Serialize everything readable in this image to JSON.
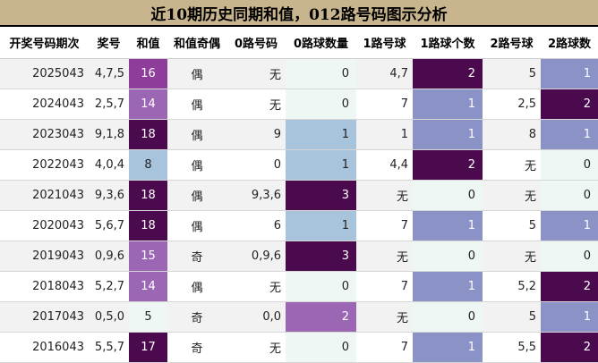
{
  "title": "近10期历史同期和值，012路号码图示分析",
  "headers": [
    "开奖号码期次",
    "奖号",
    "和值",
    "和值奇偶",
    "0路号码",
    "0路球数量",
    "1路号球",
    "1路球个数",
    "2路号球",
    "2路球数"
  ],
  "colors": {
    "title_bg": "#c8b58e",
    "deep_purple": "#4b0a4e",
    "purple": "#8e3d9a",
    "medium_purple": "#9b66b3",
    "periwinkle": "#8b93c6",
    "light_blue": "#a8c4dd",
    "pale_mint": "#eef7f4",
    "stripe_gray": "#f2f2f2"
  },
  "rows": [
    {
      "issue": "2025043",
      "numbers": "4,7,5",
      "sum": "16",
      "parity": "偶",
      "r0": "无",
      "r0n": "0",
      "r1": "4,7",
      "r1n": "2",
      "r2": "5",
      "r2n": "1"
    },
    {
      "issue": "2024043",
      "numbers": "2,5,7",
      "sum": "14",
      "parity": "偶",
      "r0": "无",
      "r0n": "0",
      "r1": "7",
      "r1n": "1",
      "r2": "2,5",
      "r2n": "2"
    },
    {
      "issue": "2023043",
      "numbers": "9,1,8",
      "sum": "18",
      "parity": "偶",
      "r0": "9",
      "r0n": "1",
      "r1": "1",
      "r1n": "1",
      "r2": "8",
      "r2n": "1"
    },
    {
      "issue": "2022043",
      "numbers": "4,0,4",
      "sum": "8",
      "parity": "偶",
      "r0": "0",
      "r0n": "1",
      "r1": "4,4",
      "r1n": "2",
      "r2": "无",
      "r2n": "0"
    },
    {
      "issue": "2021043",
      "numbers": "9,3,6",
      "sum": "18",
      "parity": "偶",
      "r0": "9,3,6",
      "r0n": "3",
      "r1": "无",
      "r1n": "0",
      "r2": "无",
      "r2n": "0"
    },
    {
      "issue": "2020043",
      "numbers": "5,6,7",
      "sum": "18",
      "parity": "偶",
      "r0": "6",
      "r0n": "1",
      "r1": "7",
      "r1n": "1",
      "r2": "5",
      "r2n": "1"
    },
    {
      "issue": "2019043",
      "numbers": "0,9,6",
      "sum": "15",
      "parity": "奇",
      "r0": "0,9,6",
      "r0n": "3",
      "r1": "无",
      "r1n": "0",
      "r2": "无",
      "r2n": "0"
    },
    {
      "issue": "2018043",
      "numbers": "5,2,7",
      "sum": "14",
      "parity": "偶",
      "r0": "无",
      "r0n": "0",
      "r1": "7",
      "r1n": "1",
      "r2": "5,2",
      "r2n": "2"
    },
    {
      "issue": "2017043",
      "numbers": "0,5,0",
      "sum": "5",
      "parity": "奇",
      "r0": "0,0",
      "r0n": "2",
      "r1": "无",
      "r1n": "0",
      "r2": "5",
      "r2n": "1"
    },
    {
      "issue": "2016043",
      "numbers": "5,5,7",
      "sum": "17",
      "parity": "奇",
      "r0": "无",
      "r0n": "0",
      "r1": "7",
      "r1n": "1",
      "r2": "5,5",
      "r2n": "2"
    }
  ]
}
